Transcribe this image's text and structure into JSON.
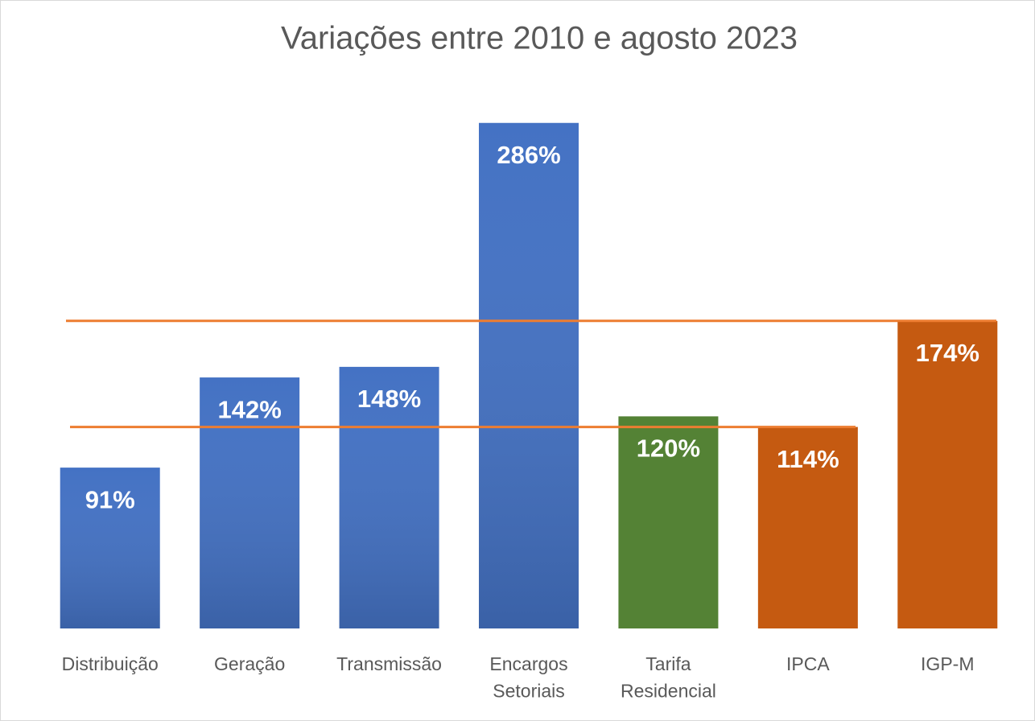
{
  "chart_data": {
    "type": "bar",
    "title": "Variações entre 2010 e agosto 2023",
    "categories": [
      "Distribuição",
      "Geração",
      "Transmissão",
      "Encargos\nSetoriais",
      "Tarifa\nResidencial",
      "IPCA",
      "IGP-M"
    ],
    "values": [
      91,
      142,
      148,
      286,
      120,
      114,
      174
    ],
    "value_labels": [
      "91%",
      "142%",
      "148%",
      "286%",
      "120%",
      "114%",
      "174%"
    ],
    "colors": [
      "#4472c4",
      "#4472c4",
      "#4472c4",
      "#4472c4",
      "#548235",
      "#c55a11",
      "#c55a11"
    ],
    "line_color": "#ed7d31",
    "ylim": [
      0,
      300
    ],
    "grid": false
  }
}
